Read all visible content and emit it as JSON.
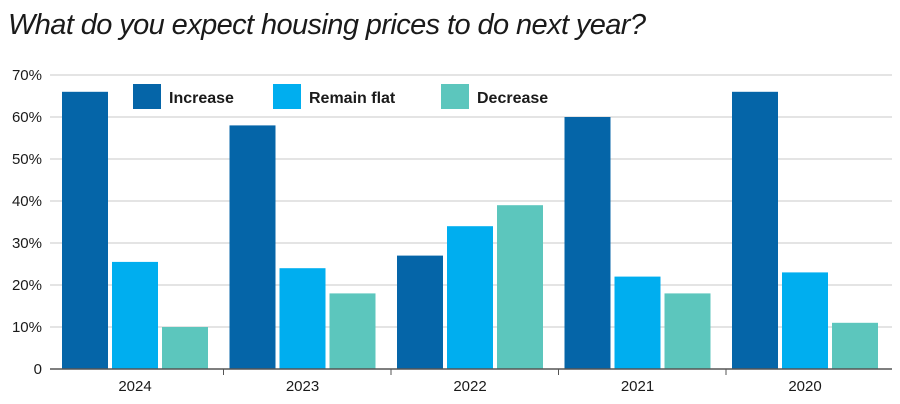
{
  "chart_data": {
    "type": "bar",
    "title": "What do you expect housing prices to do next year?",
    "xlabel": "",
    "ylabel": "",
    "ylim": [
      0,
      70
    ],
    "y_ticks": [
      0,
      10,
      20,
      30,
      40,
      50,
      60,
      70
    ],
    "y_tick_labels": [
      "0",
      "10%",
      "20%",
      "30%",
      "40%",
      "50%",
      "60%",
      "70%"
    ],
    "categories": [
      "2024",
      "2023",
      "2022",
      "2021",
      "2020"
    ],
    "series": [
      {
        "name": "Increase",
        "color": "#0565a8",
        "values": [
          66,
          58,
          27,
          60,
          66
        ]
      },
      {
        "name": "Remain flat",
        "color": "#00aeef",
        "values": [
          25.5,
          24,
          34,
          22,
          23
        ]
      },
      {
        "name": "Decrease",
        "color": "#5cc6bd",
        "values": [
          10,
          18,
          39,
          18,
          11
        ]
      }
    ],
    "grid": true,
    "legend_position": "top-left"
  }
}
